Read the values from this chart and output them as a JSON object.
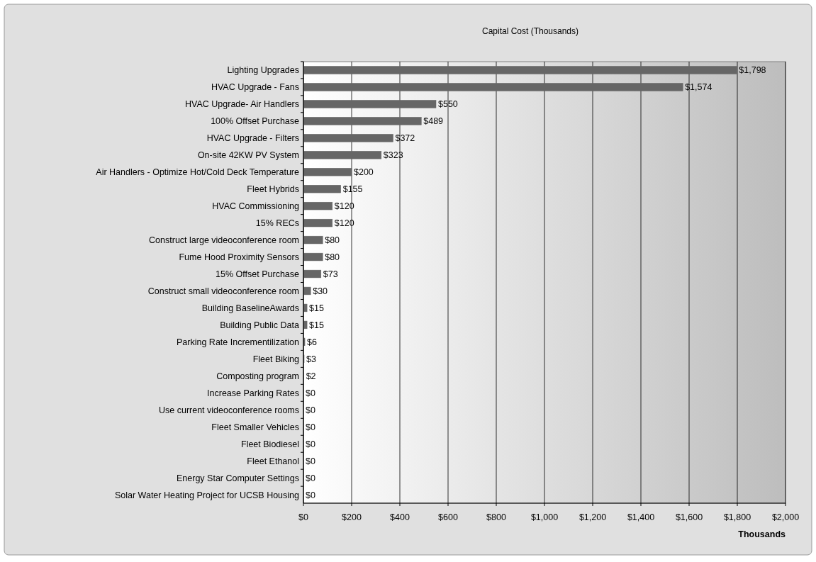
{
  "chart_data": {
    "type": "bar",
    "orientation": "horizontal",
    "title": "Capital Cost (Thousands)",
    "xlabel": "Thousands",
    "categories": [
      "Lighting Upgrades",
      "HVAC Upgrade - Fans",
      "HVAC Upgrade- Air Handlers",
      "100% Offset Purchase",
      "HVAC Upgrade - Filters",
      "On-site 42KW PV System",
      "Air Handlers - Optimize Hot/Cold Deck Temperature",
      "Fleet Hybrids",
      "HVAC Commissioning",
      "15% RECs",
      "Construct large videoconference room",
      "Fume Hood Proximity Sensors",
      "15% Offset Purchase",
      "Construct small videoconference room",
      "Building BaselineAwards",
      "Building Public Data",
      "Parking Rate Incrementilization ",
      "Fleet Biking",
      "Composting program",
      "Increase Parking Rates",
      "Use current videoconference rooms",
      "Fleet Smaller Vehicles",
      "Fleet Biodiesel",
      "Fleet Ethanol",
      "Energy Star Computer Settings",
      "Solar Water Heating Project for UCSB Housing"
    ],
    "values": [
      1798,
      1574,
      550,
      489,
      372,
      323,
      200,
      155,
      120,
      120,
      80,
      80,
      73,
      30,
      15,
      15,
      6,
      3,
      2,
      0,
      0,
      0,
      0,
      0,
      0,
      0
    ],
    "value_labels": [
      "$1,798",
      "$1,574",
      "$550",
      "$489",
      "$372",
      "$323",
      "$200",
      "$155",
      "$120",
      "$120",
      "$80",
      "$80",
      "$73",
      "$30",
      "$15",
      "$15",
      "$6",
      "$3",
      "$2",
      "$0",
      "$0",
      "$0",
      "$0",
      "$0",
      "$0",
      "$0"
    ],
    "color": "#666666",
    "xlim": [
      0,
      2000
    ],
    "xticks": [
      {
        "value": 0,
        "label": "$0"
      },
      {
        "value": 200,
        "label": "$200"
      },
      {
        "value": 400,
        "label": "$400"
      },
      {
        "value": 600,
        "label": "$600"
      },
      {
        "value": 800,
        "label": "$800"
      },
      {
        "value": 1000,
        "label": "$1,000"
      },
      {
        "value": 1200,
        "label": "$1,200"
      },
      {
        "value": 1400,
        "label": "$1,400"
      },
      {
        "value": 1600,
        "label": "$1,600"
      },
      {
        "value": 1800,
        "label": "$1,800"
      },
      {
        "value": 2000,
        "label": "$2,000"
      }
    ],
    "grid": "x"
  }
}
